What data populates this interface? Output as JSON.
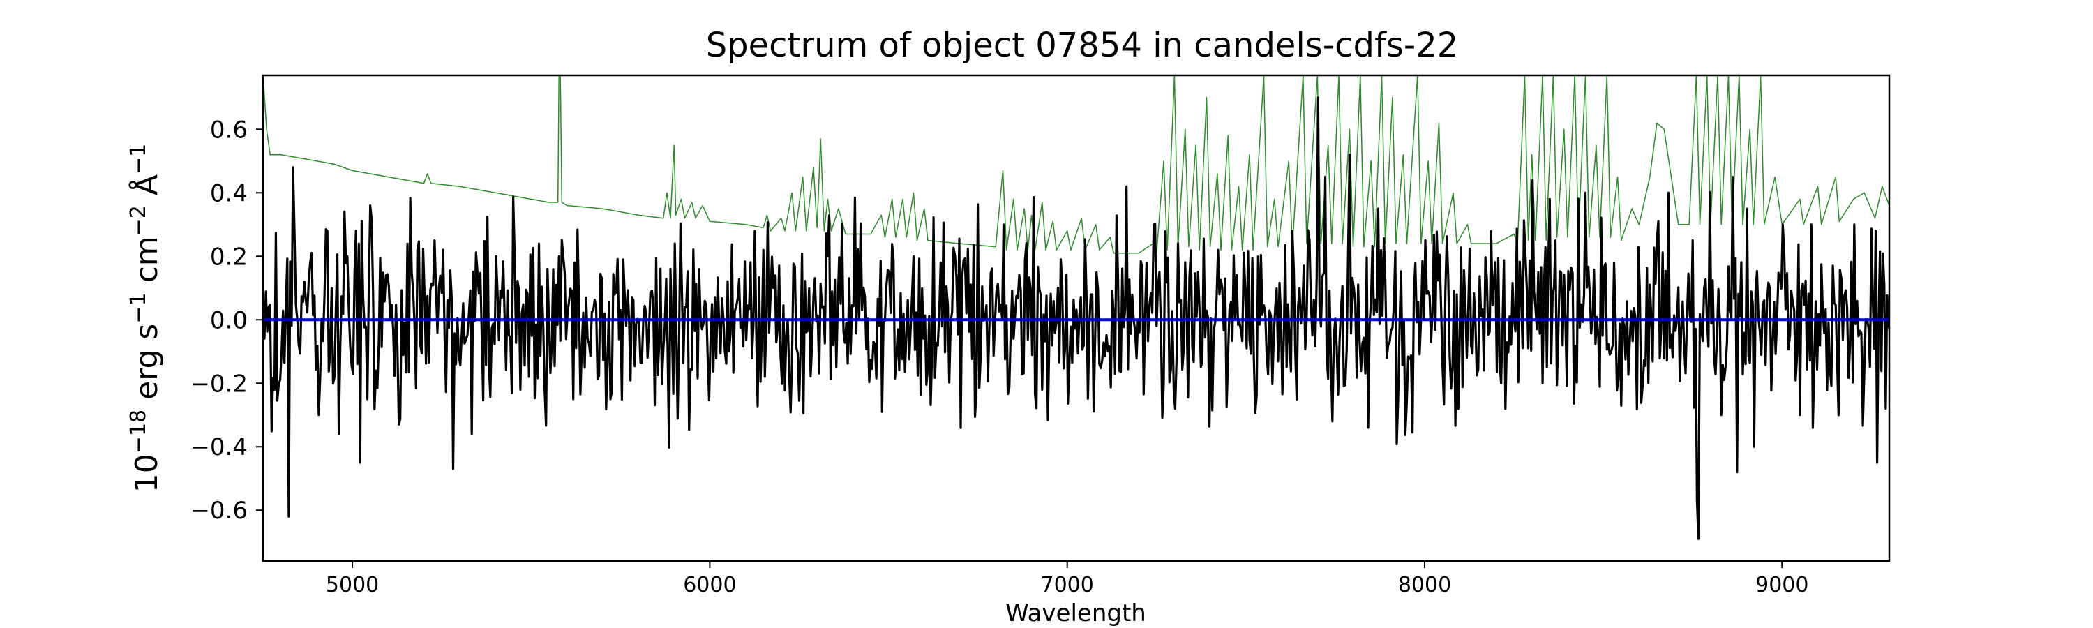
{
  "chart_data": {
    "type": "line",
    "title": "Spectrum of object 07854 in candels-cdfs-22",
    "xlabel": "Wavelength",
    "ylabel": {
      "base": "10",
      "base_exp": "−18",
      "erg": " erg s",
      "s_exp": "−1",
      "cm": " cm",
      "cm_exp": "−2",
      "ang": " Å",
      "ang_exp": "−1"
    },
    "xlim": [
      4750,
      9300
    ],
    "ylim": [
      -0.76,
      0.77
    ],
    "xticks": [
      5000,
      6000,
      7000,
      8000,
      9000
    ],
    "xtick_labels": [
      "5000",
      "6000",
      "7000",
      "8000",
      "9000"
    ],
    "yticks": [
      -0.6,
      -0.4,
      -0.2,
      0.0,
      0.2,
      0.4,
      0.6
    ],
    "ytick_labels": [
      "−0.6",
      "−0.4",
      "−0.2",
      "0.0",
      "0.2",
      "0.4",
      "0.6"
    ],
    "grid": false,
    "series": [
      {
        "role": "error",
        "color": "#2e8b2e",
        "points": [
          [
            4750,
            0.77
          ],
          [
            4760,
            0.6
          ],
          [
            4770,
            0.52
          ],
          [
            4800,
            0.52
          ],
          [
            4850,
            0.51
          ],
          [
            4900,
            0.5
          ],
          [
            4950,
            0.49
          ],
          [
            5000,
            0.47
          ],
          [
            5050,
            0.46
          ],
          [
            5100,
            0.45
          ],
          [
            5150,
            0.44
          ],
          [
            5200,
            0.43
          ],
          [
            5210,
            0.46
          ],
          [
            5220,
            0.43
          ],
          [
            5300,
            0.42
          ],
          [
            5400,
            0.4
          ],
          [
            5500,
            0.38
          ],
          [
            5550,
            0.37
          ],
          [
            5575,
            0.37
          ],
          [
            5578,
            0.77
          ],
          [
            5582,
            0.77
          ],
          [
            5586,
            0.37
          ],
          [
            5600,
            0.36
          ],
          [
            5700,
            0.35
          ],
          [
            5800,
            0.33
          ],
          [
            5870,
            0.32
          ],
          [
            5880,
            0.4
          ],
          [
            5890,
            0.32
          ],
          [
            5900,
            0.55
          ],
          [
            5905,
            0.33
          ],
          [
            5920,
            0.38
          ],
          [
            5930,
            0.32
          ],
          [
            5950,
            0.37
          ],
          [
            5960,
            0.32
          ],
          [
            5980,
            0.36
          ],
          [
            6000,
            0.31
          ],
          [
            6100,
            0.3
          ],
          [
            6150,
            0.29
          ],
          [
            6160,
            0.33
          ],
          [
            6170,
            0.28
          ],
          [
            6200,
            0.32
          ],
          [
            6210,
            0.28
          ],
          [
            6230,
            0.4
          ],
          [
            6240,
            0.28
          ],
          [
            6260,
            0.45
          ],
          [
            6270,
            0.28
          ],
          [
            6290,
            0.48
          ],
          [
            6300,
            0.29
          ],
          [
            6310,
            0.57
          ],
          [
            6320,
            0.28
          ],
          [
            6330,
            0.38
          ],
          [
            6340,
            0.28
          ],
          [
            6360,
            0.35
          ],
          [
            6380,
            0.27
          ],
          [
            6450,
            0.27
          ],
          [
            6480,
            0.33
          ],
          [
            6490,
            0.26
          ],
          [
            6510,
            0.38
          ],
          [
            6520,
            0.26
          ],
          [
            6540,
            0.38
          ],
          [
            6550,
            0.26
          ],
          [
            6570,
            0.4
          ],
          [
            6580,
            0.25
          ],
          [
            6600,
            0.35
          ],
          [
            6610,
            0.25
          ],
          [
            6700,
            0.24
          ],
          [
            6800,
            0.23
          ],
          [
            6820,
            0.47
          ],
          [
            6830,
            0.22
          ],
          [
            6850,
            0.38
          ],
          [
            6860,
            0.22
          ],
          [
            6880,
            0.35
          ],
          [
            6890,
            0.22
          ],
          [
            6900,
            0.33
          ],
          [
            6910,
            0.22
          ],
          [
            6930,
            0.37
          ],
          [
            6940,
            0.22
          ],
          [
            6960,
            0.31
          ],
          [
            6970,
            0.22
          ],
          [
            7000,
            0.28
          ],
          [
            7010,
            0.22
          ],
          [
            7040,
            0.32
          ],
          [
            7050,
            0.22
          ],
          [
            7080,
            0.3
          ],
          [
            7090,
            0.22
          ],
          [
            7120,
            0.26
          ],
          [
            7130,
            0.21
          ],
          [
            7200,
            0.21
          ],
          [
            7240,
            0.24
          ],
          [
            7250,
            0.21
          ],
          [
            7270,
            0.5
          ],
          [
            7280,
            0.22
          ],
          [
            7300,
            0.77
          ],
          [
            7310,
            0.23
          ],
          [
            7330,
            0.6
          ],
          [
            7340,
            0.23
          ],
          [
            7360,
            0.55
          ],
          [
            7370,
            0.22
          ],
          [
            7390,
            0.7
          ],
          [
            7400,
            0.23
          ],
          [
            7420,
            0.46
          ],
          [
            7430,
            0.22
          ],
          [
            7450,
            0.58
          ],
          [
            7460,
            0.22
          ],
          [
            7480,
            0.42
          ],
          [
            7490,
            0.22
          ],
          [
            7510,
            0.52
          ],
          [
            7520,
            0.22
          ],
          [
            7550,
            0.77
          ],
          [
            7560,
            0.23
          ],
          [
            7580,
            0.38
          ],
          [
            7590,
            0.23
          ],
          [
            7620,
            0.5
          ],
          [
            7630,
            0.23
          ],
          [
            7660,
            0.77
          ],
          [
            7670,
            0.24
          ],
          [
            7700,
            0.77
          ],
          [
            7710,
            0.24
          ],
          [
            7730,
            0.55
          ],
          [
            7740,
            0.24
          ],
          [
            7760,
            0.77
          ],
          [
            7770,
            0.24
          ],
          [
            7790,
            0.6
          ],
          [
            7800,
            0.23
          ],
          [
            7820,
            0.77
          ],
          [
            7830,
            0.23
          ],
          [
            7850,
            0.5
          ],
          [
            7860,
            0.23
          ],
          [
            7880,
            0.77
          ],
          [
            7890,
            0.24
          ],
          [
            7910,
            0.7
          ],
          [
            7920,
            0.24
          ],
          [
            7940,
            0.52
          ],
          [
            7950,
            0.24
          ],
          [
            7980,
            0.77
          ],
          [
            7990,
            0.24
          ],
          [
            8010,
            0.5
          ],
          [
            8020,
            0.24
          ],
          [
            8040,
            0.62
          ],
          [
            8050,
            0.24
          ],
          [
            8080,
            0.4
          ],
          [
            8090,
            0.24
          ],
          [
            8120,
            0.3
          ],
          [
            8130,
            0.24
          ],
          [
            8200,
            0.24
          ],
          [
            8250,
            0.27
          ],
          [
            8260,
            0.24
          ],
          [
            8280,
            0.77
          ],
          [
            8290,
            0.25
          ],
          [
            8300,
            0.52
          ],
          [
            8310,
            0.25
          ],
          [
            8330,
            0.77
          ],
          [
            8340,
            0.25
          ],
          [
            8360,
            0.77
          ],
          [
            8370,
            0.26
          ],
          [
            8390,
            0.6
          ],
          [
            8400,
            0.26
          ],
          [
            8420,
            0.77
          ],
          [
            8430,
            0.26
          ],
          [
            8450,
            0.77
          ],
          [
            8460,
            0.26
          ],
          [
            8480,
            0.55
          ],
          [
            8490,
            0.26
          ],
          [
            8510,
            0.77
          ],
          [
            8520,
            0.26
          ],
          [
            8540,
            0.45
          ],
          [
            8550,
            0.25
          ],
          [
            8580,
            0.35
          ],
          [
            8600,
            0.3
          ],
          [
            8630,
            0.45
          ],
          [
            8650,
            0.62
          ],
          [
            8670,
            0.6
          ],
          [
            8690,
            0.45
          ],
          [
            8710,
            0.3
          ],
          [
            8740,
            0.3
          ],
          [
            8760,
            0.77
          ],
          [
            8770,
            0.3
          ],
          [
            8790,
            0.77
          ],
          [
            8800,
            0.3
          ],
          [
            8820,
            0.77
          ],
          [
            8830,
            0.3
          ],
          [
            8850,
            0.77
          ],
          [
            8860,
            0.3
          ],
          [
            8880,
            0.77
          ],
          [
            8890,
            0.3
          ],
          [
            8910,
            0.6
          ],
          [
            8920,
            0.3
          ],
          [
            8940,
            0.77
          ],
          [
            8950,
            0.3
          ],
          [
            8980,
            0.45
          ],
          [
            9000,
            0.3
          ],
          [
            9050,
            0.38
          ],
          [
            9060,
            0.3
          ],
          [
            9100,
            0.42
          ],
          [
            9110,
            0.3
          ],
          [
            9150,
            0.45
          ],
          [
            9160,
            0.31
          ],
          [
            9200,
            0.38
          ],
          [
            9230,
            0.4
          ],
          [
            9260,
            0.32
          ],
          [
            9280,
            0.42
          ],
          [
            9300,
            0.36
          ]
        ]
      },
      {
        "role": "flux",
        "color": "#000000",
        "seed": 7854,
        "resolution": 4.0,
        "noise_sigma": 0.15,
        "mean": 0.0,
        "features": [
          [
            4780,
            -0.22
          ],
          [
            4800,
            -0.1
          ],
          [
            4820,
            -0.62
          ],
          [
            4835,
            0.48
          ],
          [
            4850,
            -0.08
          ],
          [
            4880,
            0.18
          ],
          [
            4905,
            -0.3
          ],
          [
            4930,
            0.28
          ],
          [
            4960,
            -0.36
          ],
          [
            4985,
            0.2
          ],
          [
            5010,
            0.28
          ],
          [
            5020,
            -0.45
          ],
          [
            5040,
            -0.25
          ],
          [
            5130,
            -0.33
          ],
          [
            5180,
            0.22
          ],
          [
            5230,
            0.25
          ],
          [
            5280,
            -0.47
          ],
          [
            5400,
            0.2
          ],
          [
            5620,
            0.18
          ],
          [
            5720,
            -0.25
          ],
          [
            5900,
            0.24
          ],
          [
            6150,
            0.22
          ],
          [
            6330,
            0.2
          ],
          [
            6480,
            -0.29
          ],
          [
            6570,
            0.2
          ],
          [
            6820,
            0.3
          ],
          [
            7240,
            0.3
          ],
          [
            7300,
            -0.28
          ],
          [
            7630,
            0.28
          ],
          [
            7700,
            0.7
          ],
          [
            7720,
            0.45
          ],
          [
            7740,
            -0.32
          ],
          [
            7790,
            0.52
          ],
          [
            7840,
            -0.34
          ],
          [
            7870,
            0.35
          ],
          [
            7950,
            -0.26
          ],
          [
            8000,
            0.25
          ],
          [
            8300,
            0.44
          ],
          [
            8330,
            -0.2
          ],
          [
            8350,
            0.38
          ],
          [
            8450,
            0.4
          ],
          [
            8680,
            0.4
          ],
          [
            8750,
            0.25
          ],
          [
            8760,
            -0.57
          ],
          [
            8765,
            -0.69
          ],
          [
            8780,
            0.1
          ],
          [
            8830,
            -0.3
          ],
          [
            8860,
            0.45
          ],
          [
            8875,
            -0.48
          ],
          [
            8900,
            0.35
          ],
          [
            8920,
            -0.4
          ],
          [
            9000,
            0.3
          ],
          [
            9050,
            -0.3
          ],
          [
            9080,
            0.3
          ],
          [
            9200,
            0.3
          ],
          [
            9260,
            0.28
          ],
          [
            9290,
            -0.28
          ]
        ]
      },
      {
        "role": "model",
        "color": "#0000cc",
        "points": [
          [
            4750,
            0.0
          ],
          [
            5500,
            0.0
          ],
          [
            6500,
            0.0
          ],
          [
            7500,
            0.0
          ],
          [
            8500,
            0.0
          ],
          [
            9300,
            0.0
          ]
        ]
      }
    ]
  }
}
